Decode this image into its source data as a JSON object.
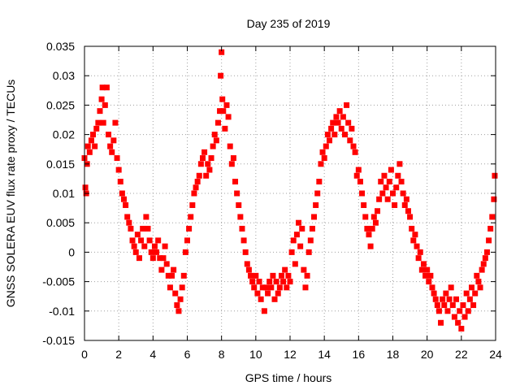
{
  "chart_data": {
    "type": "scatter",
    "title": "Day 235 of 2019",
    "xlabel": "GPS time / hours",
    "ylabel": "GNSS SOLERA EUV flux rate proxy / TECUs",
    "xlim": [
      0,
      24
    ],
    "ylim": [
      -0.015,
      0.035
    ],
    "xticks": [
      0,
      2,
      4,
      6,
      8,
      10,
      12,
      14,
      16,
      18,
      20,
      22,
      24
    ],
    "xtick_labels": [
      "0",
      "2",
      "4",
      "6",
      "8",
      "10",
      "12",
      "14",
      "16",
      "18",
      "20",
      "22",
      "24"
    ],
    "yticks": [
      -0.015,
      -0.01,
      -0.005,
      0,
      0.005,
      0.01,
      0.015,
      0.02,
      0.025,
      0.03,
      0.035
    ],
    "ytick_labels": [
      "-0.015",
      "-0.01",
      "-0.005",
      "0",
      "0.005",
      "0.01",
      "0.015",
      "0.02",
      "0.025",
      "0.03",
      "0.035"
    ],
    "grid": true,
    "marker": "square",
    "color": "#ff0000",
    "series": [
      {
        "points": [
          [
            0.0,
            0.016
          ],
          [
            0.05,
            0.011
          ],
          [
            0.1,
            0.01
          ],
          [
            0.15,
            0.015
          ],
          [
            0.2,
            0.018
          ],
          [
            0.3,
            0.017
          ],
          [
            0.4,
            0.019
          ],
          [
            0.5,
            0.02
          ],
          [
            0.6,
            0.018
          ],
          [
            0.7,
            0.021
          ],
          [
            0.8,
            0.022
          ],
          [
            0.9,
            0.024
          ],
          [
            1.0,
            0.026
          ],
          [
            1.05,
            0.028
          ],
          [
            1.1,
            0.022
          ],
          [
            1.2,
            0.025
          ],
          [
            1.3,
            0.028
          ],
          [
            1.4,
            0.02
          ],
          [
            1.5,
            0.018
          ],
          [
            1.6,
            0.017
          ],
          [
            1.7,
            0.019
          ],
          [
            1.8,
            0.022
          ],
          [
            1.9,
            0.016
          ],
          [
            2.0,
            0.014
          ],
          [
            2.1,
            0.012
          ],
          [
            2.2,
            0.01
          ],
          [
            2.3,
            0.009
          ],
          [
            2.4,
            0.008
          ],
          [
            2.5,
            0.006
          ],
          [
            2.6,
            0.005
          ],
          [
            2.7,
            0.004
          ],
          [
            2.8,
            0.002
          ],
          [
            2.9,
            0.001
          ],
          [
            3.0,
            0.0
          ],
          [
            3.1,
            0.003
          ],
          [
            3.2,
            -0.001
          ],
          [
            3.3,
            0.002
          ],
          [
            3.4,
            0.004
          ],
          [
            3.5,
            0.001
          ],
          [
            3.6,
            0.006
          ],
          [
            3.7,
            0.004
          ],
          [
            3.8,
            0.002
          ],
          [
            3.9,
            0.0
          ],
          [
            4.0,
            -0.001
          ],
          [
            4.1,
            0.001
          ],
          [
            4.2,
            0.0
          ],
          [
            4.3,
            0.002
          ],
          [
            4.4,
            -0.001
          ],
          [
            4.5,
            -0.003
          ],
          [
            4.6,
            -0.001
          ],
          [
            4.7,
            0.001
          ],
          [
            4.8,
            -0.002
          ],
          [
            4.9,
            -0.004
          ],
          [
            5.0,
            -0.006
          ],
          [
            5.1,
            -0.004
          ],
          [
            5.2,
            -0.003
          ],
          [
            5.3,
            -0.007
          ],
          [
            5.4,
            -0.009
          ],
          [
            5.5,
            -0.01
          ],
          [
            5.6,
            -0.008
          ],
          [
            5.7,
            -0.006
          ],
          [
            5.8,
            -0.004
          ],
          [
            5.9,
            0.0
          ],
          [
            6.0,
            0.002
          ],
          [
            6.1,
            0.004
          ],
          [
            6.2,
            0.006
          ],
          [
            6.3,
            0.008
          ],
          [
            6.4,
            0.01
          ],
          [
            6.5,
            0.011
          ],
          [
            6.6,
            0.012
          ],
          [
            6.7,
            0.013
          ],
          [
            6.8,
            0.015
          ],
          [
            6.9,
            0.016
          ],
          [
            7.0,
            0.017
          ],
          [
            7.1,
            0.013
          ],
          [
            7.2,
            0.015
          ],
          [
            7.3,
            0.014
          ],
          [
            7.4,
            0.016
          ],
          [
            7.5,
            0.018
          ],
          [
            7.6,
            0.02
          ],
          [
            7.7,
            0.019
          ],
          [
            7.8,
            0.022
          ],
          [
            7.9,
            0.024
          ],
          [
            7.95,
            0.03
          ],
          [
            8.0,
            0.034
          ],
          [
            8.05,
            0.026
          ],
          [
            8.1,
            0.024
          ],
          [
            8.2,
            0.021
          ],
          [
            8.3,
            0.025
          ],
          [
            8.4,
            0.023
          ],
          [
            8.5,
            0.018
          ],
          [
            8.6,
            0.015
          ],
          [
            8.7,
            0.016
          ],
          [
            8.8,
            0.012
          ],
          [
            8.9,
            0.01
          ],
          [
            9.0,
            0.008
          ],
          [
            9.1,
            0.006
          ],
          [
            9.2,
            0.004
          ],
          [
            9.3,
            0.002
          ],
          [
            9.4,
            0.0
          ],
          [
            9.5,
            -0.002
          ],
          [
            9.6,
            -0.003
          ],
          [
            9.7,
            -0.004
          ],
          [
            9.8,
            -0.005
          ],
          [
            9.9,
            -0.006
          ],
          [
            10.0,
            -0.004
          ],
          [
            10.1,
            -0.007
          ],
          [
            10.2,
            -0.005
          ],
          [
            10.3,
            -0.008
          ],
          [
            10.4,
            -0.006
          ],
          [
            10.5,
            -0.01
          ],
          [
            10.6,
            -0.006
          ],
          [
            10.7,
            -0.007
          ],
          [
            10.8,
            -0.005
          ],
          [
            10.9,
            -0.006
          ],
          [
            11.0,
            -0.004
          ],
          [
            11.1,
            -0.008
          ],
          [
            11.2,
            -0.005
          ],
          [
            11.3,
            -0.007
          ],
          [
            11.4,
            -0.006
          ],
          [
            11.5,
            -0.004
          ],
          [
            11.6,
            -0.005
          ],
          [
            11.7,
            -0.003
          ],
          [
            11.8,
            -0.006
          ],
          [
            11.9,
            -0.004
          ],
          [
            12.0,
            -0.005
          ],
          [
            12.1,
            0.0
          ],
          [
            12.2,
            0.002
          ],
          [
            12.3,
            -0.002
          ],
          [
            12.4,
            0.003
          ],
          [
            12.5,
            0.005
          ],
          [
            12.6,
            0.001
          ],
          [
            12.7,
            0.004
          ],
          [
            12.8,
            -0.003
          ],
          [
            12.9,
            -0.006
          ],
          [
            13.0,
            -0.004
          ],
          [
            13.1,
            0.0
          ],
          [
            13.2,
            0.002
          ],
          [
            13.3,
            0.004
          ],
          [
            13.4,
            0.006
          ],
          [
            13.5,
            0.008
          ],
          [
            13.6,
            0.01
          ],
          [
            13.7,
            0.012
          ],
          [
            13.8,
            0.015
          ],
          [
            13.9,
            0.017
          ],
          [
            14.0,
            0.016
          ],
          [
            14.1,
            0.018
          ],
          [
            14.2,
            0.02
          ],
          [
            14.3,
            0.019
          ],
          [
            14.4,
            0.021
          ],
          [
            14.5,
            0.022
          ],
          [
            14.6,
            0.02
          ],
          [
            14.7,
            0.023
          ],
          [
            14.8,
            0.022
          ],
          [
            14.9,
            0.024
          ],
          [
            15.0,
            0.021
          ],
          [
            15.1,
            0.023
          ],
          [
            15.2,
            0.02
          ],
          [
            15.3,
            0.025
          ],
          [
            15.4,
            0.022
          ],
          [
            15.5,
            0.019
          ],
          [
            15.6,
            0.021
          ],
          [
            15.7,
            0.018
          ],
          [
            15.8,
            0.017
          ],
          [
            15.9,
            0.013
          ],
          [
            16.0,
            0.014
          ],
          [
            16.1,
            0.012
          ],
          [
            16.2,
            0.01
          ],
          [
            16.3,
            0.008
          ],
          [
            16.4,
            0.006
          ],
          [
            16.5,
            0.004
          ],
          [
            16.6,
            0.003
          ],
          [
            16.7,
            0.001
          ],
          [
            16.8,
            0.004
          ],
          [
            16.9,
            0.006
          ],
          [
            17.0,
            0.005
          ],
          [
            17.1,
            0.007
          ],
          [
            17.2,
            0.009
          ],
          [
            17.3,
            0.012
          ],
          [
            17.4,
            0.01
          ],
          [
            17.5,
            0.013
          ],
          [
            17.6,
            0.011
          ],
          [
            17.7,
            0.009
          ],
          [
            17.8,
            0.012
          ],
          [
            17.9,
            0.014
          ],
          [
            18.0,
            0.01
          ],
          [
            18.1,
            0.008
          ],
          [
            18.2,
            0.011
          ],
          [
            18.3,
            0.013
          ],
          [
            18.4,
            0.015
          ],
          [
            18.5,
            0.012
          ],
          [
            18.6,
            0.01
          ],
          [
            18.7,
            0.008
          ],
          [
            18.8,
            0.009
          ],
          [
            18.9,
            0.007
          ],
          [
            19.0,
            0.006
          ],
          [
            19.1,
            0.004
          ],
          [
            19.2,
            0.002
          ],
          [
            19.3,
            0.003
          ],
          [
            19.4,
            0.001
          ],
          [
            19.5,
            -0.001
          ],
          [
            19.6,
            0.0
          ],
          [
            19.7,
            -0.003
          ],
          [
            19.8,
            -0.002
          ],
          [
            19.9,
            -0.004
          ],
          [
            20.0,
            -0.003
          ],
          [
            20.1,
            -0.005
          ],
          [
            20.2,
            -0.004
          ],
          [
            20.3,
            -0.006
          ],
          [
            20.4,
            -0.007
          ],
          [
            20.5,
            -0.008
          ],
          [
            20.6,
            -0.009
          ],
          [
            20.7,
            -0.01
          ],
          [
            20.8,
            -0.012
          ],
          [
            20.9,
            -0.008
          ],
          [
            21.0,
            -0.009
          ],
          [
            21.1,
            -0.007
          ],
          [
            21.2,
            -0.01
          ],
          [
            21.3,
            -0.008
          ],
          [
            21.4,
            -0.006
          ],
          [
            21.5,
            -0.009
          ],
          [
            21.6,
            -0.011
          ],
          [
            21.7,
            -0.008
          ],
          [
            21.8,
            -0.012
          ],
          [
            21.9,
            -0.01
          ],
          [
            22.0,
            -0.013
          ],
          [
            22.1,
            -0.009
          ],
          [
            22.2,
            -0.011
          ],
          [
            22.3,
            -0.007
          ],
          [
            22.4,
            -0.01
          ],
          [
            22.5,
            -0.008
          ],
          [
            22.6,
            -0.006
          ],
          [
            22.7,
            -0.009
          ],
          [
            22.8,
            -0.007
          ],
          [
            22.9,
            -0.004
          ],
          [
            23.0,
            -0.005
          ],
          [
            23.1,
            -0.006
          ],
          [
            23.2,
            -0.003
          ],
          [
            23.3,
            -0.002
          ],
          [
            23.4,
            -0.001
          ],
          [
            23.5,
            0.0
          ],
          [
            23.6,
            0.002
          ],
          [
            23.7,
            0.004
          ],
          [
            23.8,
            0.006
          ],
          [
            23.9,
            0.009
          ],
          [
            23.95,
            0.013
          ]
        ]
      }
    ]
  }
}
